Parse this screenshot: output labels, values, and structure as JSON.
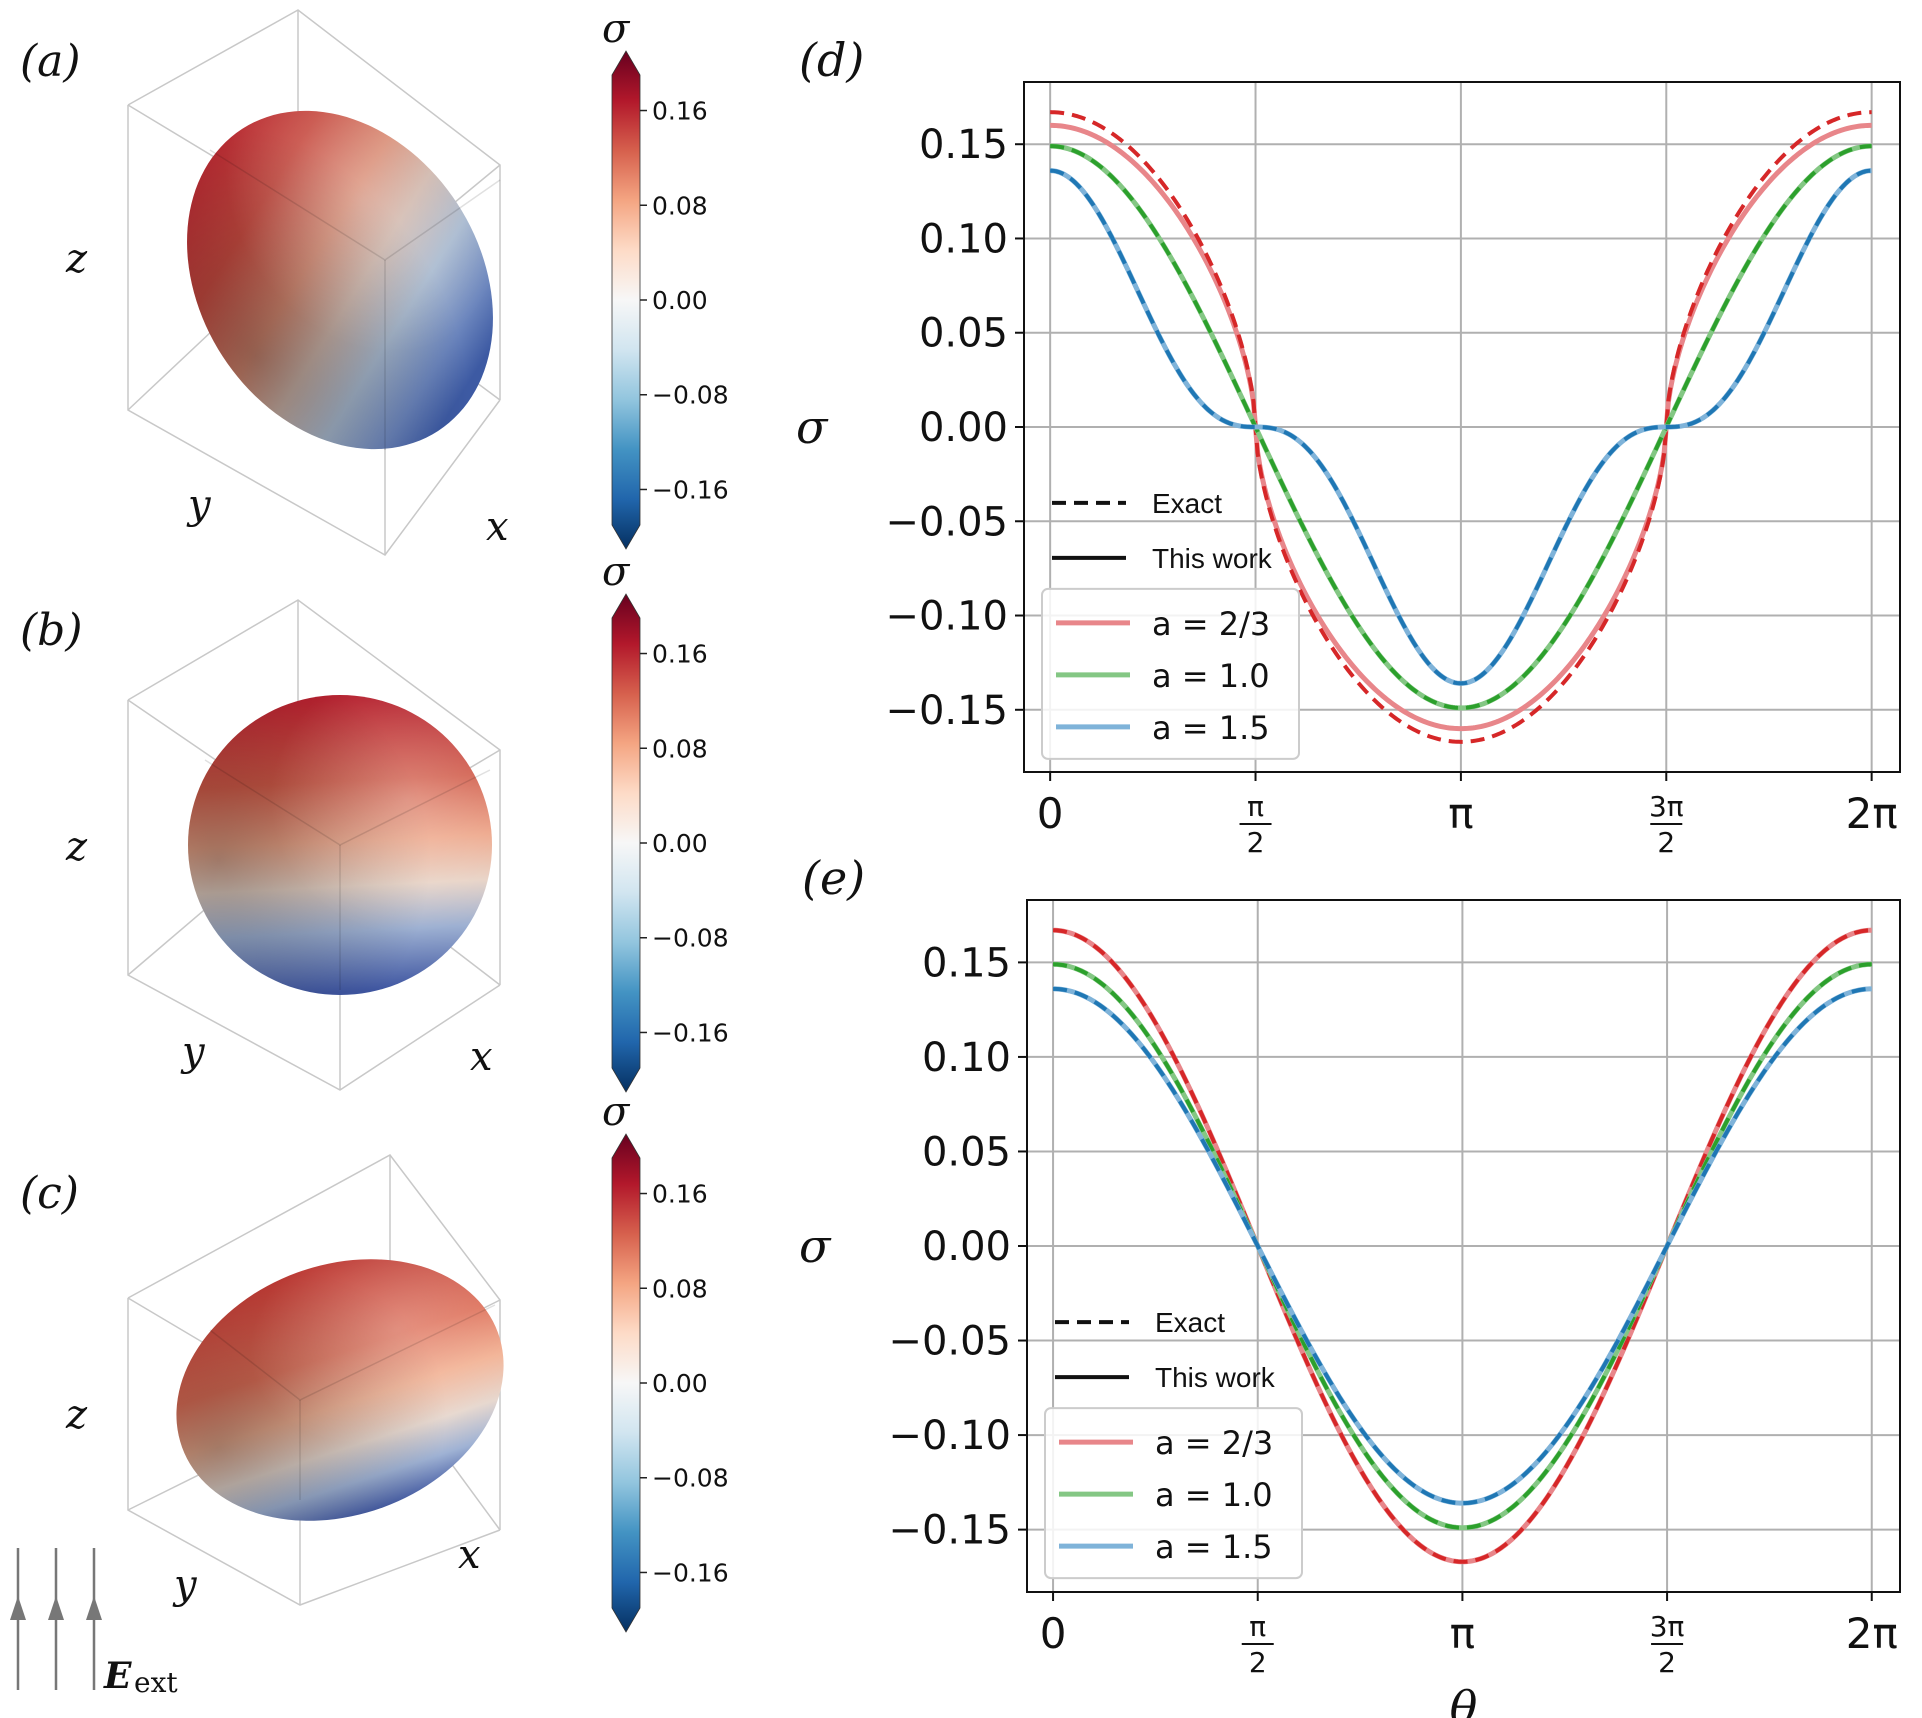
{
  "spheroid_panels": [
    {
      "label": "(a)",
      "axis_labels": {
        "x": "x",
        "y": "y",
        "z": "z"
      }
    },
    {
      "label": "(b)",
      "axis_labels": {
        "x": "x",
        "y": "y",
        "z": "z"
      }
    },
    {
      "label": "(c)",
      "axis_labels": {
        "x": "x",
        "y": "y",
        "z": "z"
      }
    }
  ],
  "colorbar": {
    "title": "σ",
    "ticks": [
      "0.16",
      "0.08",
      "0.00",
      "−0.08",
      "−0.16"
    ],
    "tick_values": [
      0.16,
      0.08,
      0.0,
      -0.08,
      -0.16
    ],
    "range": [
      -0.19,
      0.19
    ],
    "colors": [
      "#67001f",
      "#b2182b",
      "#d6604d",
      "#f4a582",
      "#fddbc7",
      "#f7f7f7",
      "#d1e5f0",
      "#92c5de",
      "#4393c3",
      "#2166ac",
      "#053061"
    ]
  },
  "field_label": {
    "symbol": "E",
    "subscript": "ext"
  },
  "chart_data": [
    {
      "panel": "(d)",
      "type": "line",
      "xlabel": "",
      "ylabel": "σ",
      "xlim": [
        -0.2,
        6.5
      ],
      "ylim": [
        -0.183,
        0.183
      ],
      "xticks": [
        0,
        1.5708,
        3.1416,
        4.7124,
        6.2832
      ],
      "xtick_labels": [
        {
          "kind": "plain",
          "text": "0"
        },
        {
          "kind": "frac",
          "num": "π",
          "den": "2"
        },
        {
          "kind": "plain",
          "text": "π"
        },
        {
          "kind": "frac",
          "num": "3π",
          "den": "2"
        },
        {
          "kind": "plain",
          "text": "2π"
        }
      ],
      "yticks": [
        0.15,
        0.1,
        0.05,
        0.0,
        -0.05,
        -0.1,
        -0.15
      ],
      "ytick_labels": [
        "0.15",
        "0.10",
        "0.05",
        "0.00",
        "−0.05",
        "−0.10",
        "−0.15"
      ],
      "grid": true,
      "style_legend": [
        {
          "label": "Exact",
          "style": "dashed"
        },
        {
          "label": "This work",
          "style": "solid"
        }
      ],
      "legend": [
        "a = 2/3",
        "a = 1.0",
        "a = 1.5"
      ],
      "legend_position": "lower-left",
      "series": [
        {
          "name": "a = 2/3",
          "color": "#d62728",
          "light_color": "#e8868a",
          "amplitude_exact": 0.167,
          "amplitude_this_work": 0.16,
          "shape_exponent": 0.6
        },
        {
          "name": "a = 1.0",
          "color": "#2ca02c",
          "light_color": "#84c784",
          "amplitude_exact": 0.149,
          "amplitude_this_work": 0.149,
          "shape_exponent": 1.0
        },
        {
          "name": "a = 1.5",
          "color": "#1f77b4",
          "light_color": "#7fb3d9",
          "amplitude_exact": 0.136,
          "amplitude_this_work": 0.136,
          "shape_exponent": 2.6
        }
      ]
    },
    {
      "panel": "(e)",
      "type": "line",
      "xlabel": "θ",
      "ylabel": "σ",
      "xlim": [
        -0.2,
        6.5
      ],
      "ylim": [
        -0.183,
        0.183
      ],
      "xticks": [
        0,
        1.5708,
        3.1416,
        4.7124,
        6.2832
      ],
      "xtick_labels": [
        {
          "kind": "plain",
          "text": "0"
        },
        {
          "kind": "frac",
          "num": "π",
          "den": "2"
        },
        {
          "kind": "plain",
          "text": "π"
        },
        {
          "kind": "frac",
          "num": "3π",
          "den": "2"
        },
        {
          "kind": "plain",
          "text": "2π"
        }
      ],
      "yticks": [
        0.15,
        0.1,
        0.05,
        0.0,
        -0.05,
        -0.1,
        -0.15
      ],
      "ytick_labels": [
        "0.15",
        "0.10",
        "0.05",
        "0.00",
        "−0.05",
        "−0.10",
        "−0.15"
      ],
      "grid": true,
      "style_legend": [
        {
          "label": "Exact",
          "style": "dashed"
        },
        {
          "label": "This work",
          "style": "solid"
        }
      ],
      "legend": [
        "a = 2/3",
        "a = 1.0",
        "a = 1.5"
      ],
      "legend_position": "lower-left",
      "series": [
        {
          "name": "a = 2/3",
          "color": "#d62728",
          "light_color": "#e8868a",
          "amplitude_exact": 0.167,
          "amplitude_this_work": 0.167,
          "shape_exponent": 1.0
        },
        {
          "name": "a = 1.0",
          "color": "#2ca02c",
          "light_color": "#84c784",
          "amplitude_exact": 0.149,
          "amplitude_this_work": 0.149,
          "shape_exponent": 1.0
        },
        {
          "name": "a = 1.5",
          "color": "#1f77b4",
          "light_color": "#7fb3d9",
          "amplitude_exact": 0.136,
          "amplitude_this_work": 0.136,
          "shape_exponent": 1.0
        }
      ]
    }
  ]
}
